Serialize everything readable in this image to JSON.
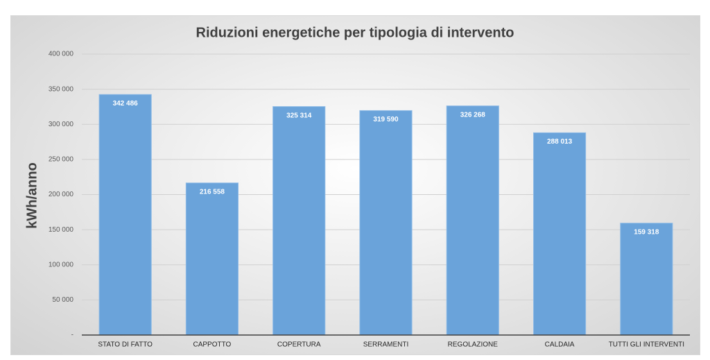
{
  "chart_data": {
    "type": "bar",
    "title": "Riduzioni energetiche per tipologia di intervento",
    "y_label": "kWh/anno",
    "categories": [
      "STATO DI FATTO",
      "CAPPOTTO",
      "COPERTURA",
      "SERRAMENTI",
      "REGOLAZIONE",
      "CALDAIA",
      "TUTTI GLI INTERVENTI"
    ],
    "values": [
      342486,
      216558,
      325314,
      319590,
      326268,
      288013,
      159318
    ],
    "value_labels": [
      "342 486",
      "216 558",
      "325 314",
      "319 590",
      "326 268",
      "288 013",
      "159 318"
    ],
    "color": "#6aa3da",
    "ylim": [
      0,
      400000
    ],
    "yticks": [
      {
        "value": 0,
        "label": "-"
      },
      {
        "value": 50000,
        "label": "50 000"
      },
      {
        "value": 100000,
        "label": "100 000"
      },
      {
        "value": 150000,
        "label": "150 000"
      },
      {
        "value": 200000,
        "label": "200 000"
      },
      {
        "value": 250000,
        "label": "250 000"
      },
      {
        "value": 300000,
        "label": "300 000"
      },
      {
        "value": 350000,
        "label": "350 000"
      },
      {
        "value": 400000,
        "label": "400 000"
      }
    ],
    "grid": true
  }
}
